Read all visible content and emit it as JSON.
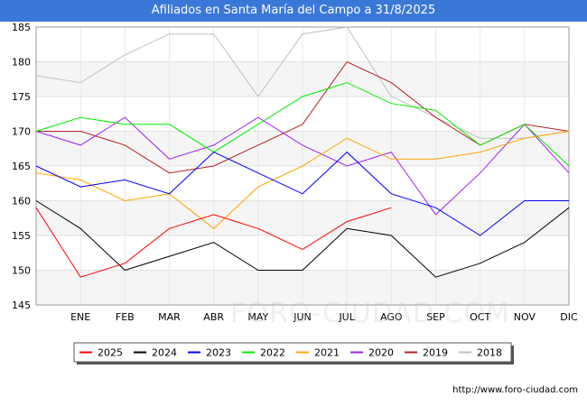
{
  "header": {
    "title": "Afiliados en Santa María del Campo a 31/8/2025"
  },
  "footer": {
    "url": "http://www.foro-ciudad.com"
  },
  "watermark": "FORO-CIUDAD.COM",
  "chart_data": {
    "type": "line",
    "title": "Afiliados en Santa María del Campo a 31/8/2025",
    "xlabel": "",
    "ylabel": "",
    "categories": [
      "",
      "ENE",
      "FEB",
      "MAR",
      "ABR",
      "MAY",
      "JUN",
      "JUL",
      "AGO",
      "SEP",
      "OCT",
      "NOV",
      "DIC"
    ],
    "ylim": [
      145,
      185
    ],
    "yticks": [
      145,
      150,
      155,
      160,
      165,
      170,
      175,
      180,
      185
    ],
    "grid": true,
    "legend_position": "bottom",
    "series": [
      {
        "name": "2025",
        "color": "#ff0000",
        "values": [
          159,
          149,
          151,
          156,
          158,
          156,
          153,
          157,
          159,
          null,
          null,
          null,
          null
        ]
      },
      {
        "name": "2024",
        "color": "#000000",
        "values": [
          160,
          156,
          150,
          152,
          154,
          150,
          150,
          156,
          155,
          149,
          151,
          154,
          159
        ]
      },
      {
        "name": "2023",
        "color": "#0000ff",
        "values": [
          165,
          162,
          163,
          161,
          167,
          164,
          161,
          167,
          161,
          159,
          155,
          160,
          160
        ]
      },
      {
        "name": "2022",
        "color": "#00ee00",
        "values": [
          170,
          172,
          171,
          171,
          167,
          171,
          175,
          177,
          174,
          173,
          168,
          171,
          165
        ]
      },
      {
        "name": "2021",
        "color": "#ffa500",
        "values": [
          164,
          163,
          160,
          161,
          156,
          162,
          165,
          169,
          166,
          166,
          167,
          169,
          170
        ]
      },
      {
        "name": "2020",
        "color": "#a020f0",
        "values": [
          170,
          168,
          172,
          166,
          168,
          172,
          168,
          165,
          167,
          158,
          164,
          171,
          164
        ]
      },
      {
        "name": "2019",
        "color": "#b22222",
        "values": [
          170,
          170,
          168,
          164,
          165,
          168,
          171,
          180,
          177,
          172,
          168,
          171,
          170
        ]
      },
      {
        "name": "2018",
        "color": "#c0c0c0",
        "values": [
          178,
          177,
          181,
          184,
          184,
          175,
          184,
          185,
          175,
          172,
          169,
          169,
          170
        ]
      }
    ]
  }
}
